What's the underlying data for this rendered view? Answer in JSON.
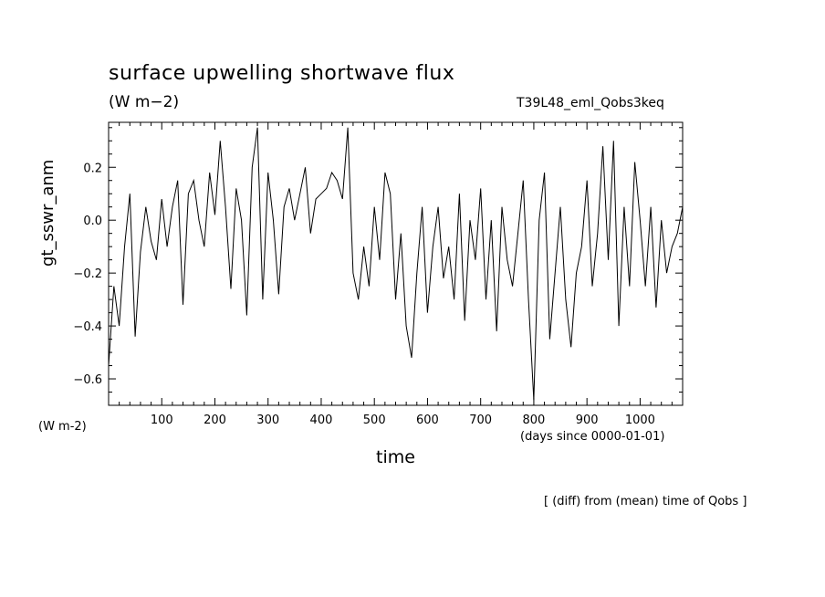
{
  "header": {
    "title": "surface upwelling shortwave flux",
    "units": "(W m−2)",
    "run_name": "T39L48_eml_Qobs3keq"
  },
  "axes": {
    "y_label": "gt_sswr_anm",
    "y_unit": "(W m-2)",
    "x_label": "time",
    "x_unit": "(days since 0000-01-01)"
  },
  "footnote": "[ (diff) from (mean) time of Qobs ]",
  "colors": {
    "line": "#000000",
    "background": "#ffffff"
  },
  "chart_data": {
    "type": "line",
    "title": "surface upwelling shortwave flux",
    "xlabel": "time",
    "ylabel": "gt_sswr_anm",
    "xlim": [
      0,
      1080
    ],
    "ylim": [
      -0.7,
      0.37
    ],
    "xticks": [
      100,
      200,
      300,
      400,
      500,
      600,
      700,
      800,
      900,
      1000
    ],
    "yticks": [
      -0.6,
      -0.4,
      -0.2,
      0.0,
      0.2
    ],
    "ytick_labels": [
      "−0.6",
      "−0.4",
      "−0.2",
      "0.0",
      "0.2"
    ],
    "grid": false,
    "series": [
      {
        "x": [
          0,
          10,
          20,
          30,
          40,
          50,
          60,
          70,
          80,
          90,
          100,
          110,
          120,
          130,
          140,
          150,
          160,
          170,
          180,
          190,
          200,
          210,
          220,
          230,
          240,
          250,
          260,
          270,
          280,
          290,
          300,
          310,
          320,
          330,
          340,
          350,
          360,
          370,
          380,
          390,
          400,
          410,
          420,
          430,
          440,
          450,
          460,
          470,
          480,
          490,
          500,
          510,
          520,
          530,
          540,
          550,
          560,
          570,
          580,
          590,
          600,
          610,
          620,
          630,
          640,
          650,
          660,
          670,
          680,
          690,
          700,
          710,
          720,
          730,
          740,
          750,
          760,
          770,
          780,
          790,
          800,
          810,
          820,
          830,
          840,
          850,
          860,
          870,
          880,
          890,
          900,
          910,
          920,
          930,
          940,
          950,
          960,
          970,
          980,
          990,
          1000,
          1010,
          1020,
          1030,
          1040,
          1050,
          1060,
          1070,
          1080
        ],
        "y": [
          -0.55,
          -0.25,
          -0.4,
          -0.1,
          0.1,
          -0.44,
          -0.12,
          0.05,
          -0.08,
          -0.15,
          0.08,
          -0.1,
          0.05,
          0.15,
          -0.32,
          0.1,
          0.15,
          0.0,
          -0.1,
          0.18,
          0.02,
          0.3,
          0.05,
          -0.26,
          0.12,
          0.0,
          -0.36,
          0.2,
          0.35,
          -0.3,
          0.18,
          0.0,
          -0.28,
          0.05,
          0.12,
          0.0,
          0.1,
          0.2,
          -0.05,
          0.08,
          0.1,
          0.12,
          0.18,
          0.15,
          0.08,
          0.35,
          -0.2,
          -0.3,
          -0.1,
          -0.25,
          0.05,
          -0.15,
          0.18,
          0.1,
          -0.3,
          -0.05,
          -0.4,
          -0.52,
          -0.2,
          0.05,
          -0.35,
          -0.1,
          0.05,
          -0.22,
          -0.1,
          -0.3,
          0.1,
          -0.38,
          0.0,
          -0.15,
          0.12,
          -0.3,
          0.0,
          -0.42,
          0.05,
          -0.15,
          -0.25,
          -0.05,
          0.15,
          -0.3,
          -0.68,
          0.0,
          0.18,
          -0.45,
          -0.2,
          0.05,
          -0.3,
          -0.48,
          -0.2,
          -0.1,
          0.15,
          -0.25,
          -0.05,
          0.28,
          -0.15,
          0.3,
          -0.4,
          0.05,
          -0.25,
          0.22,
          0.0,
          -0.25,
          0.05,
          -0.33,
          0.0,
          -0.2,
          -0.1,
          -0.05,
          0.05
        ]
      }
    ]
  }
}
